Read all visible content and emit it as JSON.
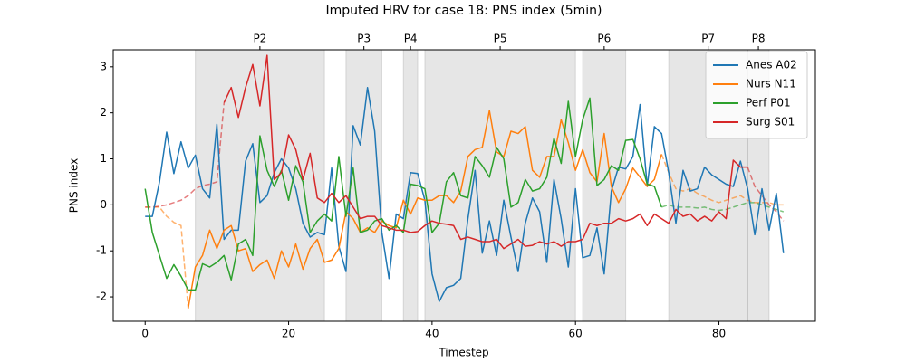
{
  "chart_data": {
    "type": "line",
    "title": "Imputed HRV for case 18: PNS index (5min)",
    "xlabel": "Timestep",
    "ylabel": "PNS index",
    "xlim": [
      -4.45,
      93.45
    ],
    "ylim": [
      -2.53,
      3.37
    ],
    "xticks": [
      0,
      20,
      40,
      60,
      80
    ],
    "yticks": [
      -2,
      -1,
      0,
      1,
      2,
      3
    ],
    "legend": "upper right",
    "periods": [
      {
        "label": "P2",
        "start": 7,
        "end": 25
      },
      {
        "label": "P3",
        "start": 28,
        "end": 33
      },
      {
        "label": "P4",
        "start": 36,
        "end": 38
      },
      {
        "label": "P5",
        "start": 39,
        "end": 60
      },
      {
        "label": "P6",
        "start": 61,
        "end": 67
      },
      {
        "label": "P7",
        "start": 73,
        "end": 84
      },
      {
        "label": "P8",
        "start": 84,
        "end": 87
      }
    ],
    "x": [
      0,
      1,
      2,
      3,
      4,
      5,
      6,
      7,
      8,
      9,
      10,
      11,
      12,
      13,
      14,
      15,
      16,
      17,
      18,
      19,
      20,
      21,
      22,
      23,
      24,
      25,
      26,
      27,
      28,
      29,
      30,
      31,
      32,
      33,
      34,
      35,
      36,
      37,
      38,
      39,
      40,
      41,
      42,
      43,
      44,
      45,
      46,
      47,
      48,
      49,
      50,
      51,
      52,
      53,
      54,
      55,
      56,
      57,
      58,
      59,
      60,
      61,
      62,
      63,
      64,
      65,
      66,
      67,
      68,
      69,
      70,
      71,
      72,
      73,
      74,
      75,
      76,
      77,
      78,
      79,
      80,
      81,
      82,
      83,
      84,
      85,
      86,
      87,
      88,
      89
    ],
    "series": [
      {
        "name": "Anes A02",
        "color": "#1f77b4",
        "values": [
          -0.25,
          -0.25,
          0.5,
          1.58,
          0.68,
          1.37,
          0.8,
          1.08,
          0.35,
          0.15,
          1.75,
          -0.75,
          -0.55,
          -0.55,
          0.95,
          1.33,
          0.05,
          0.2,
          0.7,
          1.0,
          0.8,
          0.35,
          -0.4,
          -0.7,
          -0.6,
          -0.65,
          0.8,
          -0.9,
          -1.45,
          1.72,
          1.3,
          2.55,
          1.6,
          -0.6,
          -1.6,
          -0.2,
          -0.3,
          0.7,
          0.68,
          0.1,
          -1.5,
          -2.1,
          -1.8,
          -1.75,
          -1.6,
          -0.3,
          0.75,
          -1.05,
          -0.35,
          -1.1,
          0.1,
          -0.7,
          -1.45,
          -0.4,
          0.15,
          -0.15,
          -1.25,
          0.55,
          -0.3,
          -1.35,
          0.35,
          -1.15,
          -1.1,
          -0.5,
          -1.5,
          0.3,
          0.82,
          0.78,
          1.05,
          2.18,
          0.4,
          1.7,
          1.55,
          0.7,
          -0.4,
          0.75,
          0.3,
          0.35,
          0.82,
          0.65,
          0.55,
          0.45,
          0.4,
          0.95,
          0.35,
          -0.65,
          0.35,
          -0.55,
          0.25,
          -1.05
        ]
      },
      {
        "name": "Nurs N11",
        "color": "#ff7f0e",
        "values": [
          null,
          null,
          null,
          null,
          null,
          null,
          -2.25,
          -1.35,
          -1.1,
          -0.55,
          -0.95,
          -0.55,
          -0.45,
          -1.0,
          -0.95,
          -1.45,
          -1.3,
          -1.2,
          -1.6,
          -1.0,
          -1.35,
          -0.85,
          -1.4,
          -0.95,
          -0.75,
          -1.25,
          -1.2,
          -0.95,
          -0.15,
          -0.3,
          -0.6,
          -0.5,
          -0.6,
          -0.35,
          -0.45,
          -0.5,
          0.1,
          -0.2,
          0.15,
          0.1,
          0.1,
          0.2,
          0.2,
          0.05,
          0.3,
          1.05,
          1.2,
          1.25,
          2.05,
          1.15,
          1.05,
          1.6,
          1.55,
          1.7,
          0.75,
          0.6,
          1.05,
          1.05,
          1.85,
          1.35,
          0.75,
          1.2,
          0.7,
          0.5,
          1.55,
          0.4,
          0.05,
          0.35,
          0.8,
          0.6,
          0.4,
          0.55,
          1.1,
          null,
          null,
          null,
          null,
          null,
          null,
          null,
          null,
          null,
          null,
          null,
          null,
          null,
          null,
          null,
          null,
          null
        ],
        "imputed": [
          -0.05,
          -0.05,
          -0.05,
          -0.25,
          -0.38,
          -0.45,
          -2.25,
          null,
          null,
          null,
          null,
          null,
          null,
          null,
          null,
          null,
          null,
          null,
          null,
          null,
          null,
          null,
          null,
          null,
          null,
          null,
          null,
          null,
          null,
          null,
          null,
          null,
          null,
          null,
          null,
          null,
          null,
          null,
          null,
          null,
          null,
          null,
          null,
          null,
          null,
          null,
          null,
          null,
          null,
          null,
          null,
          null,
          null,
          null,
          null,
          null,
          null,
          null,
          null,
          null,
          null,
          null,
          null,
          null,
          null,
          null,
          null,
          null,
          null,
          null,
          null,
          null,
          1.1,
          0.7,
          0.35,
          0.3,
          0.35,
          0.25,
          0.18,
          0.1,
          0.05,
          0.1,
          0.15,
          0.2,
          0.1,
          0.05,
          0.05,
          0.05,
          0.0,
          0.0
        ]
      },
      {
        "name": "Perf P01",
        "color": "#2ca02c",
        "values": [
          0.35,
          -0.6,
          -1.1,
          -1.6,
          -1.3,
          -1.55,
          -1.85,
          -1.85,
          -1.28,
          -1.35,
          -1.25,
          -1.1,
          -1.63,
          -0.85,
          -0.75,
          -1.1,
          1.5,
          0.75,
          0.4,
          0.75,
          0.1,
          0.85,
          0.5,
          -0.6,
          -0.35,
          -0.2,
          -0.35,
          1.05,
          -0.25,
          0.8,
          -0.6,
          -0.55,
          -0.35,
          -0.3,
          -0.55,
          -0.45,
          -0.6,
          0.45,
          0.42,
          0.35,
          -0.6,
          -0.4,
          0.5,
          0.7,
          0.2,
          0.15,
          1.05,
          0.85,
          0.6,
          1.25,
          1.0,
          -0.05,
          0.05,
          0.55,
          0.3,
          0.35,
          0.6,
          1.45,
          0.9,
          2.25,
          1.05,
          1.85,
          2.32,
          0.42,
          0.55,
          0.85,
          0.75,
          1.4,
          1.42,
          1.0,
          0.45,
          0.4,
          -0.05,
          null,
          null,
          null,
          null,
          null,
          null,
          null,
          null,
          null,
          null,
          null,
          null,
          null,
          null,
          null,
          null,
          null
        ],
        "imputed": [
          null,
          null,
          null,
          null,
          null,
          null,
          null,
          null,
          null,
          null,
          null,
          null,
          null,
          null,
          null,
          null,
          null,
          null,
          null,
          null,
          null,
          null,
          null,
          null,
          null,
          null,
          null,
          null,
          null,
          null,
          null,
          null,
          null,
          null,
          null,
          null,
          null,
          null,
          null,
          null,
          null,
          null,
          null,
          null,
          null,
          null,
          null,
          null,
          null,
          null,
          null,
          null,
          null,
          null,
          null,
          null,
          null,
          null,
          null,
          null,
          null,
          null,
          null,
          null,
          null,
          null,
          null,
          null,
          null,
          null,
          null,
          null,
          -0.05,
          0.0,
          -0.05,
          -0.05,
          -0.05,
          -0.07,
          -0.05,
          -0.1,
          -0.12,
          -0.1,
          -0.05,
          0.0,
          0.05,
          0.05,
          0.0,
          -0.05,
          -0.1,
          -0.15
        ]
      },
      {
        "name": "Surg S01",
        "color": "#d62728",
        "values": [
          null,
          null,
          null,
          null,
          null,
          null,
          null,
          null,
          null,
          null,
          null,
          2.22,
          2.55,
          1.9,
          2.55,
          3.05,
          2.15,
          3.25,
          0.55,
          0.7,
          1.52,
          1.2,
          0.55,
          1.12,
          0.15,
          0.05,
          0.25,
          0.05,
          0.2,
          -0.05,
          -0.3,
          -0.25,
          -0.25,
          -0.45,
          -0.5,
          -0.55,
          -0.55,
          -0.6,
          -0.58,
          -0.45,
          -0.35,
          -0.4,
          -0.42,
          -0.45,
          -0.75,
          -0.7,
          -0.75,
          -0.8,
          -0.8,
          -0.75,
          -0.95,
          -0.85,
          -0.75,
          -0.9,
          -0.88,
          -0.8,
          -0.85,
          -0.8,
          -0.9,
          -0.8,
          -0.8,
          -0.75,
          -0.4,
          -0.45,
          -0.4,
          -0.4,
          -0.3,
          -0.35,
          -0.3,
          -0.2,
          -0.45,
          -0.2,
          -0.3,
          -0.4,
          -0.1,
          -0.25,
          -0.2,
          -0.35,
          -0.25,
          -0.35,
          -0.15,
          -0.3,
          0.97,
          0.82,
          0.82,
          null,
          null,
          null,
          null,
          null
        ],
        "imputed": [
          -0.05,
          -0.05,
          -0.03,
          0.0,
          0.05,
          0.1,
          0.2,
          0.35,
          0.42,
          0.45,
          0.5,
          2.22,
          null,
          null,
          null,
          null,
          null,
          null,
          null,
          null,
          null,
          null,
          null,
          null,
          null,
          null,
          null,
          null,
          null,
          null,
          null,
          null,
          null,
          null,
          null,
          null,
          null,
          null,
          null,
          null,
          null,
          null,
          null,
          null,
          null,
          null,
          null,
          null,
          null,
          null,
          null,
          null,
          null,
          null,
          null,
          null,
          null,
          null,
          null,
          null,
          null,
          null,
          null,
          null,
          null,
          null,
          null,
          null,
          null,
          null,
          null,
          null,
          null,
          null,
          null,
          null,
          null,
          null,
          null,
          null,
          null,
          null,
          null,
          null,
          0.82,
          0.4,
          0.2,
          0.0,
          -0.15,
          -0.35
        ]
      }
    ]
  }
}
